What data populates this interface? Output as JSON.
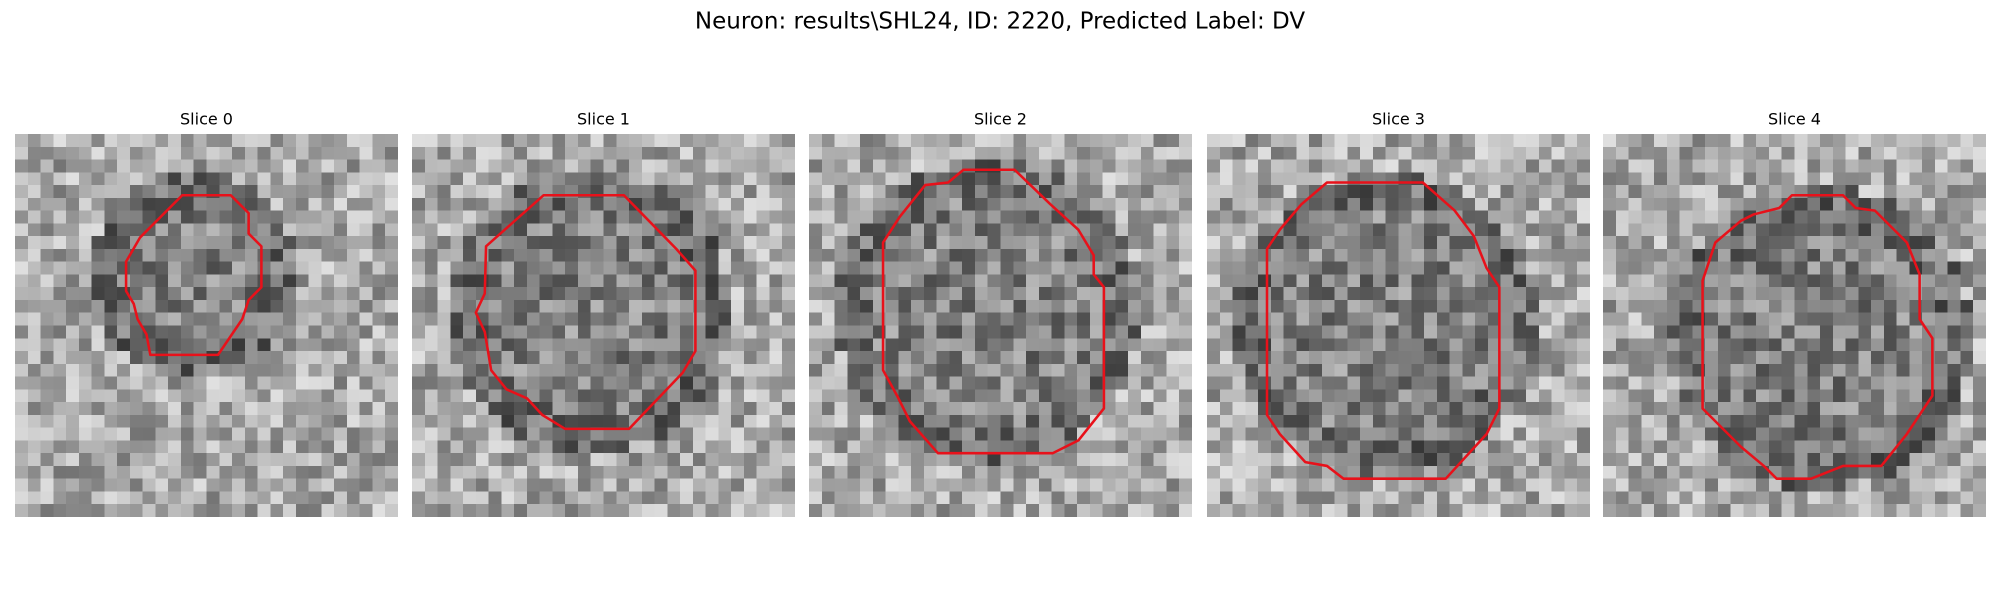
{
  "title": "Neuron: results\\SHL24, ID: 2220, Predicted Label: DV",
  "panels": [
    {
      "title": "Slice 0"
    },
    {
      "title": "Slice 1"
    },
    {
      "title": "Slice 2"
    },
    {
      "title": "Slice 3"
    },
    {
      "title": "Slice 4"
    }
  ]
}
